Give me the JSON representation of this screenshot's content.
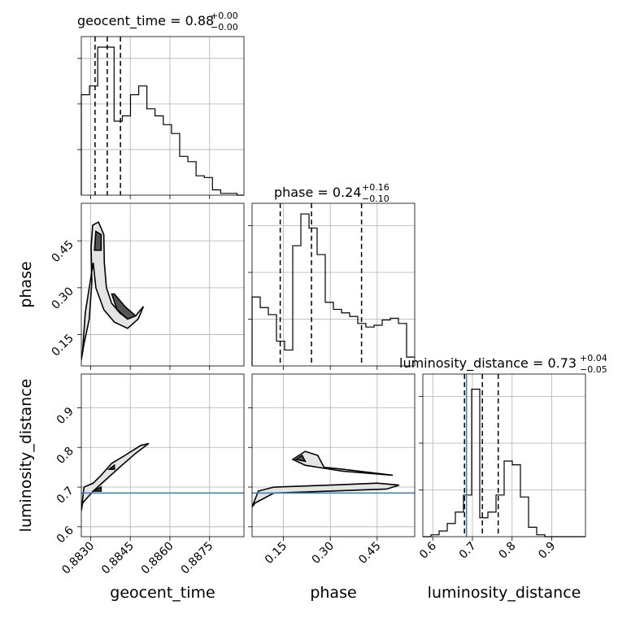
{
  "chart_data": {
    "type": "corner",
    "parameters": [
      "geocent_time",
      "phase",
      "luminosity_distance"
    ],
    "titles": {
      "geocent_time": {
        "label": "geocent_time = 0.88",
        "plus": "+0.00",
        "minus": "−0.00"
      },
      "phase": {
        "label": "phase = 0.24",
        "plus": "+0.16",
        "minus": "−0.10"
      },
      "luminosity_distance": {
        "label": "luminosity_distance = 0.73",
        "plus": "+0.04",
        "minus": "−0.05"
      }
    },
    "ranges": {
      "geocent_time": [
        0.88265,
        0.8888
      ],
      "phase": [
        0.05,
        0.57
      ],
      "luminosity_distance": [
        0.575,
        0.985
      ]
    },
    "tick_labels": {
      "geocent_time": [
        "0.8830",
        "0.8845",
        "0.8860",
        "0.8875"
      ],
      "phase": [
        "0.15",
        "0.30",
        "0.45"
      ],
      "luminosity_distance": [
        "0.6",
        "0.7",
        "0.8",
        "0.9"
      ]
    },
    "tick_values": {
      "geocent_time": [
        0.883,
        0.8845,
        0.886,
        0.8875
      ],
      "phase": [
        0.15,
        0.3,
        0.45
      ],
      "luminosity_distance": [
        0.6,
        0.7,
        0.8,
        0.9
      ]
    },
    "quantiles": {
      "geocent_time": [
        0.88317,
        0.88363,
        0.88413
      ],
      "phase": [
        0.14,
        0.24,
        0.4
      ],
      "luminosity_distance": [
        0.68,
        0.725,
        0.765
      ]
    },
    "truth": {
      "luminosity_distance": 0.685
    },
    "histograms": {
      "geocent_time": {
        "edges_start": 0.88265,
        "bin_width": 0.00031,
        "counts": [
          0.57,
          0.62,
          0.84,
          0.84,
          0.42,
          0.45,
          0.57,
          0.62,
          0.49,
          0.45,
          0.4,
          0.35,
          0.22,
          0.19,
          0.11,
          0.1,
          0.03,
          0.01,
          0.01,
          0.0
        ],
        "ymax": 0.9
      },
      "phase": {
        "edges_start": 0.05,
        "bin_width": 0.026,
        "counts": [
          0.39,
          0.33,
          0.29,
          0.14,
          0.09,
          0.68,
          0.86,
          0.78,
          0.63,
          0.36,
          0.32,
          0.3,
          0.28,
          0.24,
          0.22,
          0.23,
          0.26,
          0.27,
          0.24,
          0.05
        ],
        "ymax": 0.92
      },
      "luminosity_distance": {
        "edges_start": 0.575,
        "bin_width": 0.0205,
        "counts": [
          0.0,
          0.01,
          0.03,
          0.07,
          0.13,
          0.22,
          0.78,
          0.1,
          0.13,
          0.22,
          0.4,
          0.38,
          0.21,
          0.05,
          0.01,
          0.0,
          0.0,
          0.0,
          0.0,
          0.0
        ],
        "ymax": 0.86
      }
    },
    "contours_2d": {
      "phase_vs_geocent_time": [
        {
          "level": "outer",
          "points": [
            [
              0.88265,
              0.07
            ],
            [
              0.88275,
              0.12
            ],
            [
              0.88295,
              0.2
            ],
            [
              0.88305,
              0.32
            ],
            [
              0.88302,
              0.43
            ],
            [
              0.88308,
              0.5
            ],
            [
              0.8833,
              0.51
            ],
            [
              0.8835,
              0.47
            ],
            [
              0.88352,
              0.38
            ],
            [
              0.8836,
              0.3
            ],
            [
              0.8838,
              0.25
            ],
            [
              0.8841,
              0.22
            ],
            [
              0.8844,
              0.2
            ],
            [
              0.8847,
              0.21
            ],
            [
              0.885,
              0.24
            ],
            [
              0.8848,
              0.2
            ],
            [
              0.8844,
              0.17
            ],
            [
              0.8839,
              0.19
            ],
            [
              0.8835,
              0.23
            ],
            [
              0.8832,
              0.3
            ],
            [
              0.8831,
              0.38
            ],
            [
              0.8828,
              0.22
            ],
            [
              0.8827,
              0.1
            ],
            [
              0.88265,
              0.07
            ]
          ]
        },
        {
          "level": "inner",
          "points": [
            [
              0.88315,
              0.42
            ],
            [
              0.8832,
              0.48
            ],
            [
              0.8834,
              0.47
            ],
            [
              0.8834,
              0.42
            ],
            [
              0.88315,
              0.42
            ]
          ]
        },
        {
          "level": "inner",
          "points": [
            [
              0.8838,
              0.28
            ],
            [
              0.884,
              0.23
            ],
            [
              0.8844,
              0.2
            ],
            [
              0.8847,
              0.21
            ],
            [
              0.8843,
              0.24
            ],
            [
              0.8839,
              0.28
            ],
            [
              0.8838,
              0.28
            ]
          ]
        }
      ],
      "luminosity_distance_vs_geocent_time": [
        {
          "level": "outer",
          "points": [
            [
              0.88265,
              0.64
            ],
            [
              0.88275,
              0.7
            ],
            [
              0.8831,
              0.71
            ],
            [
              0.8834,
              0.73
            ],
            [
              0.8838,
              0.76
            ],
            [
              0.8843,
              0.78
            ],
            [
              0.8849,
              0.805
            ],
            [
              0.8852,
              0.81
            ],
            [
              0.8847,
              0.785
            ],
            [
              0.8841,
              0.75
            ],
            [
              0.8836,
              0.72
            ],
            [
              0.8831,
              0.69
            ],
            [
              0.8829,
              0.675
            ],
            [
              0.8827,
              0.66
            ],
            [
              0.88265,
              0.64
            ]
          ]
        },
        {
          "level": "inner",
          "points": [
            [
              0.8831,
              0.69
            ],
            [
              0.8834,
              0.7
            ],
            [
              0.8834,
              0.69
            ],
            [
              0.8831,
              0.69
            ]
          ]
        },
        {
          "level": "inner",
          "points": [
            [
              0.8837,
              0.745
            ],
            [
              0.8839,
              0.755
            ],
            [
              0.8839,
              0.745
            ],
            [
              0.8837,
              0.745
            ]
          ]
        }
      ],
      "luminosity_distance_vs_phase": [
        {
          "level": "outer",
          "points": [
            [
              0.05,
              0.65
            ],
            [
              0.07,
              0.69
            ],
            [
              0.12,
              0.7
            ],
            [
              0.3,
              0.705
            ],
            [
              0.45,
              0.71
            ],
            [
              0.52,
              0.705
            ],
            [
              0.48,
              0.695
            ],
            [
              0.3,
              0.69
            ],
            [
              0.12,
              0.685
            ],
            [
              0.06,
              0.66
            ],
            [
              0.05,
              0.65
            ]
          ]
        },
        {
          "level": "outer",
          "points": [
            [
              0.18,
              0.77
            ],
            [
              0.22,
              0.79
            ],
            [
              0.26,
              0.78
            ],
            [
              0.28,
              0.75
            ],
            [
              0.34,
              0.745
            ],
            [
              0.5,
              0.73
            ],
            [
              0.34,
              0.74
            ],
            [
              0.26,
              0.75
            ],
            [
              0.22,
              0.755
            ],
            [
              0.18,
              0.77
            ]
          ]
        },
        {
          "level": "inner",
          "points": [
            [
              0.19,
              0.77
            ],
            [
              0.21,
              0.78
            ],
            [
              0.22,
              0.765
            ],
            [
              0.19,
              0.77
            ]
          ]
        }
      ]
    }
  },
  "axis_labels": {
    "x1": "geocent_time",
    "x2": "phase",
    "x3": "luminosity_distance",
    "y2": "phase",
    "y3": "luminosity_distance"
  }
}
